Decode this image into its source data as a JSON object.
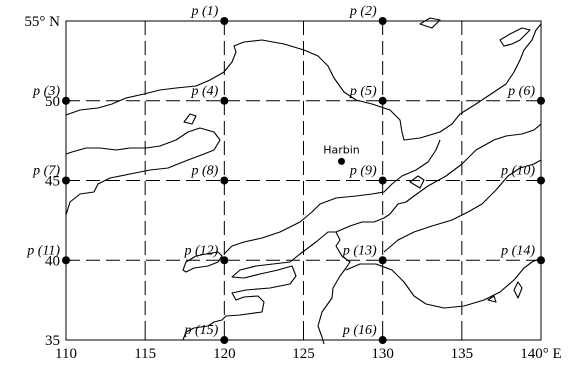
{
  "map": {
    "lat_ticks": [
      {
        "value": 55,
        "label": "55° N"
      },
      {
        "value": 50,
        "label": "50"
      },
      {
        "value": 45,
        "label": "45"
      },
      {
        "value": 40,
        "label": "40"
      },
      {
        "value": 35,
        "label": "35"
      }
    ],
    "lon_ticks": [
      {
        "value": 110,
        "label": "110"
      },
      {
        "value": 115,
        "label": "115"
      },
      {
        "value": 120,
        "label": "120"
      },
      {
        "value": 125,
        "label": "125"
      },
      {
        "value": 130,
        "label": "130"
      },
      {
        "value": 135,
        "label": "135"
      },
      {
        "value": 140,
        "label": "140° E"
      }
    ],
    "extent": {
      "lon": [
        110,
        140
      ],
      "lat": [
        35,
        55
      ]
    },
    "grid_lines": "dashed every 5°",
    "points": [
      {
        "label": "p (1)",
        "lon": 120,
        "lat": 55
      },
      {
        "label": "p (2)",
        "lon": 130,
        "lat": 55
      },
      {
        "label": "p (3)",
        "lon": 110,
        "lat": 50
      },
      {
        "label": "p (4)",
        "lon": 120,
        "lat": 50
      },
      {
        "label": "p (5)",
        "lon": 130,
        "lat": 50
      },
      {
        "label": "p (6)",
        "lon": 140,
        "lat": 50
      },
      {
        "label": "p (7)",
        "lon": 110,
        "lat": 45
      },
      {
        "label": "p (8)",
        "lon": 120,
        "lat": 45
      },
      {
        "label": "p (9)",
        "lon": 130,
        "lat": 45
      },
      {
        "label": "p (10)",
        "lon": 140,
        "lat": 45
      },
      {
        "label": "p (11)",
        "lon": 110,
        "lat": 40
      },
      {
        "label": "p (12)",
        "lon": 120,
        "lat": 40
      },
      {
        "label": "p (13)",
        "lon": 130,
        "lat": 40
      },
      {
        "label": "p (14)",
        "lon": 140,
        "lat": 40
      },
      {
        "label": "p (15)",
        "lon": 120,
        "lat": 35
      },
      {
        "label": "p (16)",
        "lon": 130,
        "lat": 35
      }
    ],
    "city": {
      "name": "Harbin",
      "lon": 127.4,
      "lat": 46.2
    },
    "colors": {
      "lines": "#000000",
      "background": "#ffffff"
    }
  }
}
